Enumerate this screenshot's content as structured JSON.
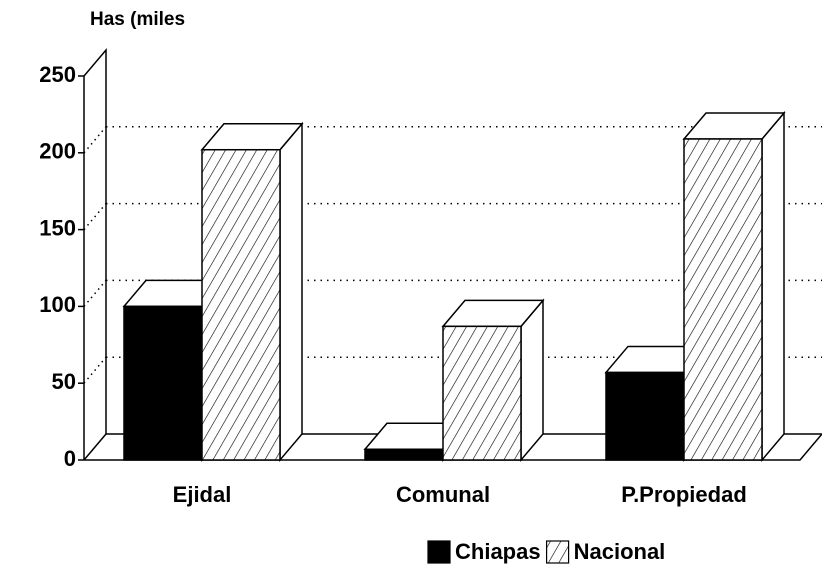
{
  "chart_data": {
    "type": "bar3d",
    "title": "Has (miles",
    "categories": [
      "Ejidal",
      "Comunal",
      "P.Propiedad"
    ],
    "series": [
      {
        "name": "Chiapas",
        "color": "#000000",
        "hatch": false,
        "values": [
          100,
          7,
          57
        ]
      },
      {
        "name": "Nacional",
        "color": "#000000",
        "hatch": true,
        "values": [
          202,
          87,
          209
        ]
      }
    ],
    "ylim": [
      0,
      250
    ],
    "yticks": [
      0,
      50,
      100,
      150,
      200,
      250
    ],
    "grid": true
  }
}
